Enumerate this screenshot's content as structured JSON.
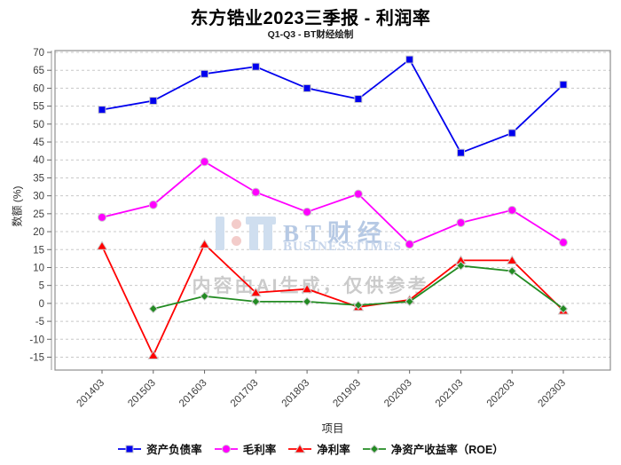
{
  "title": "东方锆业2023三季报 - 利润率",
  "subtitle": "Q1-Q3 - BT财经绘制",
  "watermark": {
    "brand": "BT财经",
    "brand_sub": "BUSINESSTIMES",
    "disclaimer": "内容由AI生成，仅供参考",
    "brand_color": "#b6c9e4",
    "disclaimer_color": "#cbcbcb"
  },
  "chart_data": {
    "type": "line",
    "title": "东方锆业2023三季报 - 利润率",
    "subtitle": "Q1-Q3 - BT财经绘制",
    "xlabel": "项目",
    "ylabel": "数额 (%)",
    "categories": [
      "201403",
      "201503",
      "201603",
      "201703",
      "201803",
      "201903",
      "202003",
      "202103",
      "202203",
      "202303"
    ],
    "series": [
      {
        "name": "资产负债率",
        "color": "#0000ee",
        "marker": "square",
        "values": [
          54,
          56.5,
          64,
          66,
          60,
          57,
          68,
          42,
          47.5,
          61
        ]
      },
      {
        "name": "毛利率",
        "color": "#ff00ff",
        "marker": "circle",
        "values": [
          24,
          27.5,
          39.5,
          31,
          25.5,
          30.5,
          16.5,
          22.5,
          26,
          17
        ]
      },
      {
        "name": "净利率",
        "color": "#ff0000",
        "marker": "triangle",
        "values": [
          16,
          -14.5,
          16.5,
          3,
          4,
          -1,
          1,
          12,
          12,
          -2
        ]
      },
      {
        "name": "净资产收益率（ROE）",
        "color": "#228b22",
        "marker": "diamond",
        "values": [
          null,
          -1.5,
          2,
          0.5,
          0.5,
          -0.5,
          0.5,
          10.5,
          9,
          -1.5
        ]
      }
    ],
    "yticks": [
      70,
      65,
      60,
      55,
      50,
      45,
      40,
      35,
      30,
      25,
      20,
      15,
      10,
      5,
      0,
      -5,
      -10,
      -15
    ],
    "ylim": [
      -20.5,
      70.5
    ],
    "grid": "horizontal-dashed",
    "legend_position": "bottom",
    "grid_color": "#c8c8c8",
    "spine_color": "#909090",
    "tick_label_color": "#3c3c3c"
  }
}
